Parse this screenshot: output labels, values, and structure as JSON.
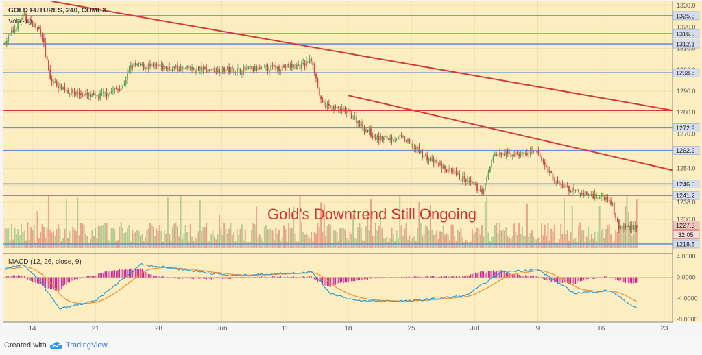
{
  "chart_data": [
    {
      "type": "candlestick",
      "header": "GOLD FUTURES, 240, COMEX",
      "volume_label": "Vol (20)",
      "annotation": "Gold's Downtrend Still Ongoing",
      "ylim": [
        1214,
        1332
      ],
      "y_ticks": [
        1230.0,
        1238.0,
        1246.0,
        1254.0,
        1262.0,
        1270.0,
        1280.0,
        1290.0,
        1300.0,
        1310.0,
        1320.0,
        1330.0
      ],
      "x_ticks": [
        "14",
        "21",
        "28",
        "Jun",
        "11",
        "18",
        "25",
        "Jul",
        "9",
        "16",
        "23"
      ],
      "horizontal_levels": [
        1325.3,
        1316.9,
        1312.1,
        1298.6,
        1272.9,
        1262.2,
        1246.6,
        1241.2,
        1218.5
      ],
      "current_price": 1227.3,
      "countdown": "32:05",
      "red_horizontal": 1281.0,
      "trendlines": [
        {
          "from": [
            "May 12",
            1332.0
          ],
          "to": [
            "Jul 23",
            1281.0
          ]
        },
        {
          "from": [
            "Jun 18",
            1288.0
          ],
          "to": [
            "Jul 23",
            1253.0
          ]
        }
      ],
      "approx_close_path": [
        [
          "May 11",
          1313
        ],
        [
          "May 13",
          1325
        ],
        [
          "May 15",
          1318
        ],
        [
          "May 16",
          1295
        ],
        [
          "May 18",
          1290
        ],
        [
          "May 21",
          1287
        ],
        [
          "May 24",
          1292
        ],
        [
          "May 25",
          1302
        ],
        [
          "Jun 1",
          1300
        ],
        [
          "Jun 7",
          1300
        ],
        [
          "Jun 13",
          1302
        ],
        [
          "Jun 14",
          1305
        ],
        [
          "Jun 15",
          1284
        ],
        [
          "Jun 18",
          1280
        ],
        [
          "Jun 21",
          1268
        ],
        [
          "Jun 24",
          1268
        ],
        [
          "Jun 27",
          1258
        ],
        [
          "Jul 1",
          1248
        ],
        [
          "Jul 3",
          1243
        ],
        [
          "Jul 4",
          1260
        ],
        [
          "Jul 9",
          1261
        ],
        [
          "Jul 11",
          1247
        ],
        [
          "Jul 13",
          1243
        ],
        [
          "Jul 17",
          1240
        ],
        [
          "Jul 18",
          1226
        ],
        [
          "Jul 20",
          1227
        ]
      ]
    },
    {
      "type": "line",
      "title": "MACD (12, 26, close, 9)",
      "ylim": [
        -8.5,
        4.5
      ],
      "y_ticks": [
        "4.0000",
        "0.0000",
        "-4.0000",
        "-8.0000"
      ],
      "series": [
        {
          "role": "macd",
          "color": "#2a9bd6"
        },
        {
          "role": "signal",
          "color": "#f08c2d"
        },
        {
          "role": "histogram",
          "color": "#c8289a"
        }
      ],
      "approx_macd": [
        [
          "May 11",
          1.5
        ],
        [
          "May 13",
          2.5
        ],
        [
          "May 15",
          -1.0
        ],
        [
          "May 17",
          -6.0
        ],
        [
          "May 21",
          -4.5
        ],
        [
          "May 25",
          1.0
        ],
        [
          "May 26",
          2.5
        ],
        [
          "Jun 5",
          0.3
        ],
        [
          "Jun 14",
          1.0
        ],
        [
          "Jun 16",
          -3.0
        ],
        [
          "Jun 19",
          -4.5
        ],
        [
          "Jun 25",
          -4.5
        ],
        [
          "Jul 1",
          -3.5
        ],
        [
          "Jul 5",
          1.0
        ],
        [
          "Jul 9",
          1.5
        ],
        [
          "Jul 13",
          -3.0
        ],
        [
          "Jul 17",
          -2.5
        ],
        [
          "Jul 20",
          -6.0
        ]
      ]
    }
  ],
  "colors": {
    "pane_bg": "#fdeec1",
    "up": "#5fa25a",
    "down": "#c94c4c",
    "level_line": "#6d8fd6",
    "trend_line": "#d23a3a",
    "annotation_text": "#d63031",
    "price_box": "#f3c4c4",
    "level_box": "#d5ddef"
  },
  "footer": {
    "created_with": "Created with",
    "brand": "TradingView"
  }
}
